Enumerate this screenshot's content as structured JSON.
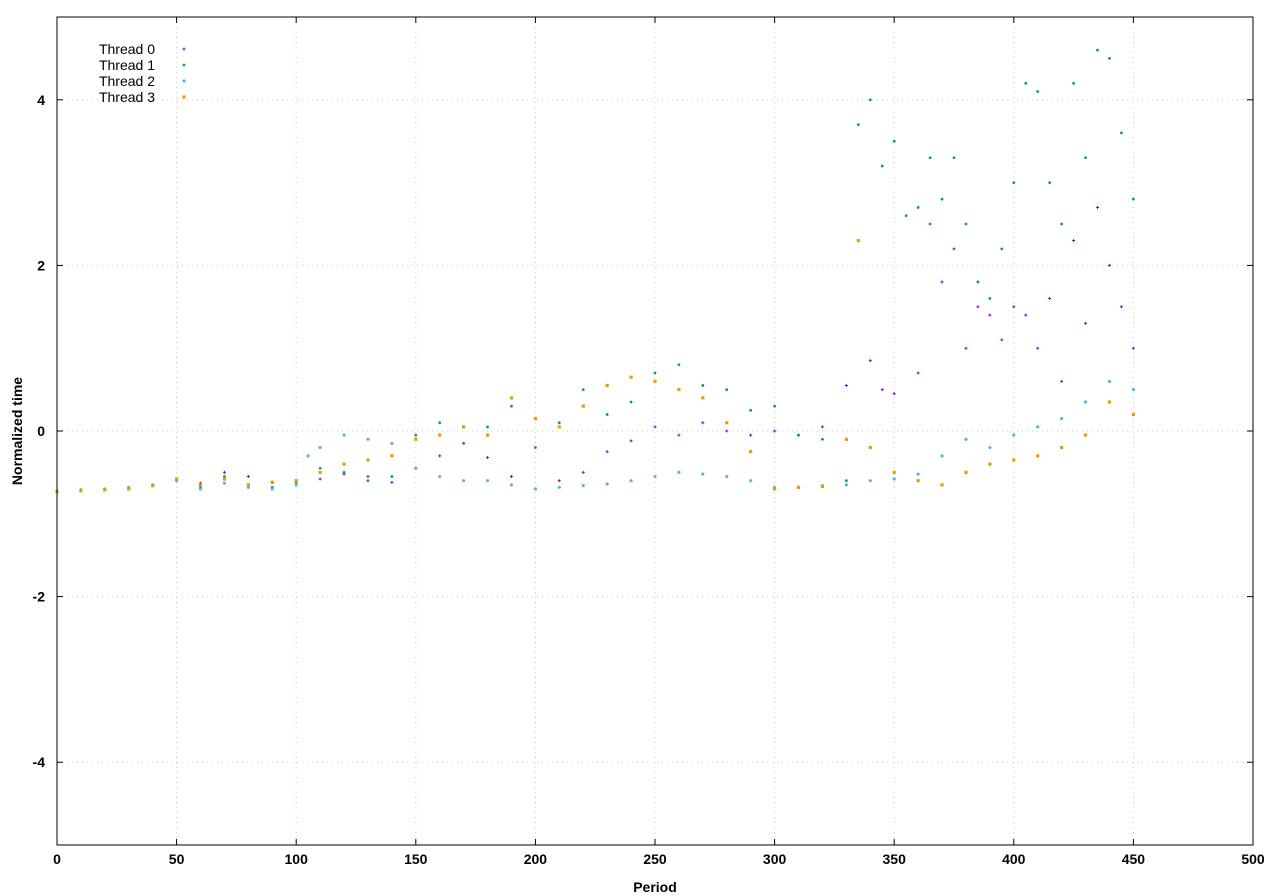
{
  "chart_data": {
    "type": "scatter",
    "title": "",
    "xlabel": "Period",
    "ylabel": "Normalized time",
    "xlim": [
      0,
      500
    ],
    "ylim": [
      -5,
      5
    ],
    "xticks": [
      0,
      50,
      100,
      150,
      200,
      250,
      300,
      350,
      400,
      450,
      500
    ],
    "yticks": [
      -4,
      -2,
      0,
      2,
      4
    ],
    "grid": true,
    "legend_position": "top-left",
    "series": [
      {
        "name": "Thread 0",
        "color": "#9400d3",
        "marker": "plus",
        "points": [
          [
            0,
            -0.73
          ],
          [
            10,
            -0.72
          ],
          [
            20,
            -0.71
          ],
          [
            30,
            -0.69
          ],
          [
            40,
            -0.66
          ],
          [
            50,
            -0.6
          ],
          [
            60,
            -0.63
          ],
          [
            70,
            -0.5
          ],
          [
            80,
            -0.55
          ],
          [
            90,
            -0.62
          ],
          [
            100,
            -0.6
          ],
          [
            110,
            -0.58
          ],
          [
            120,
            -0.52
          ],
          [
            130,
            -0.55
          ],
          [
            140,
            -0.62
          ],
          [
            150,
            -0.45
          ],
          [
            160,
            -0.3
          ],
          [
            170,
            -0.15
          ],
          [
            180,
            -0.32
          ],
          [
            190,
            -0.55
          ],
          [
            200,
            -0.7
          ],
          [
            210,
            -0.6
          ],
          [
            220,
            -0.5
          ],
          [
            230,
            -0.25
          ],
          [
            240,
            -0.12
          ],
          [
            250,
            0.05
          ],
          [
            260,
            -0.05
          ],
          [
            270,
            0.1
          ],
          [
            280,
            0.0
          ],
          [
            290,
            -0.05
          ],
          [
            300,
            0.0
          ],
          [
            310,
            -0.05
          ],
          [
            320,
            0.05
          ],
          [
            330,
            0.55
          ],
          [
            340,
            0.85
          ],
          [
            345,
            0.5
          ],
          [
            350,
            0.45
          ],
          [
            360,
            0.7
          ],
          [
            365,
            2.5
          ],
          [
            370,
            1.8
          ],
          [
            375,
            2.2
          ],
          [
            380,
            1.0
          ],
          [
            385,
            1.5
          ],
          [
            390,
            1.4
          ],
          [
            395,
            1.1
          ],
          [
            400,
            1.5
          ],
          [
            405,
            1.4
          ],
          [
            410,
            1.0
          ],
          [
            415,
            1.6
          ],
          [
            420,
            0.6
          ],
          [
            425,
            2.3
          ],
          [
            430,
            1.3
          ],
          [
            435,
            2.7
          ],
          [
            440,
            2.0
          ],
          [
            445,
            1.5
          ],
          [
            450,
            1.0
          ]
        ]
      },
      {
        "name": "Thread 1",
        "color": "#009e73",
        "marker": "x",
        "points": [
          [
            0,
            -0.73
          ],
          [
            10,
            -0.71
          ],
          [
            20,
            -0.71
          ],
          [
            30,
            -0.7
          ],
          [
            40,
            -0.66
          ],
          [
            50,
            -0.58
          ],
          [
            60,
            -0.68
          ],
          [
            70,
            -0.55
          ],
          [
            80,
            -0.65
          ],
          [
            90,
            -0.68
          ],
          [
            100,
            -0.62
          ],
          [
            105,
            -0.3
          ],
          [
            110,
            -0.45
          ],
          [
            120,
            -0.5
          ],
          [
            130,
            -0.6
          ],
          [
            140,
            -0.55
          ],
          [
            150,
            -0.05
          ],
          [
            160,
            0.1
          ],
          [
            170,
            -0.15
          ],
          [
            180,
            0.05
          ],
          [
            190,
            0.3
          ],
          [
            200,
            -0.2
          ],
          [
            210,
            0.1
          ],
          [
            220,
            0.5
          ],
          [
            230,
            0.2
          ],
          [
            240,
            0.35
          ],
          [
            250,
            0.7
          ],
          [
            260,
            0.8
          ],
          [
            270,
            0.55
          ],
          [
            280,
            0.5
          ],
          [
            290,
            0.25
          ],
          [
            300,
            0.3
          ],
          [
            310,
            -0.05
          ],
          [
            320,
            -0.1
          ],
          [
            330,
            -0.6
          ],
          [
            335,
            3.7
          ],
          [
            340,
            4.0
          ],
          [
            345,
            3.2
          ],
          [
            350,
            3.5
          ],
          [
            355,
            2.6
          ],
          [
            360,
            2.7
          ],
          [
            365,
            3.3
          ],
          [
            370,
            2.8
          ],
          [
            375,
            3.3
          ],
          [
            380,
            2.5
          ],
          [
            385,
            1.8
          ],
          [
            390,
            1.6
          ],
          [
            395,
            2.2
          ],
          [
            400,
            3.0
          ],
          [
            405,
            4.2
          ],
          [
            410,
            4.1
          ],
          [
            415,
            3.0
          ],
          [
            420,
            2.5
          ],
          [
            425,
            4.2
          ],
          [
            430,
            3.3
          ],
          [
            435,
            4.6
          ],
          [
            440,
            4.5
          ],
          [
            445,
            3.6
          ],
          [
            450,
            2.8
          ]
        ]
      },
      {
        "name": "Thread 2",
        "color": "#56b4e9",
        "marker": "star",
        "points": [
          [
            0,
            -0.73
          ],
          [
            10,
            -0.72
          ],
          [
            20,
            -0.7
          ],
          [
            30,
            -0.68
          ],
          [
            40,
            -0.65
          ],
          [
            50,
            -0.6
          ],
          [
            60,
            -0.7
          ],
          [
            70,
            -0.63
          ],
          [
            80,
            -0.68
          ],
          [
            90,
            -0.7
          ],
          [
            100,
            -0.65
          ],
          [
            105,
            -0.3
          ],
          [
            110,
            -0.2
          ],
          [
            120,
            -0.05
          ],
          [
            130,
            -0.1
          ],
          [
            140,
            -0.15
          ],
          [
            150,
            -0.45
          ],
          [
            160,
            -0.55
          ],
          [
            170,
            -0.6
          ],
          [
            180,
            -0.6
          ],
          [
            190,
            -0.65
          ],
          [
            200,
            -0.7
          ],
          [
            210,
            -0.68
          ],
          [
            220,
            -0.66
          ],
          [
            230,
            -0.64
          ],
          [
            240,
            -0.6
          ],
          [
            250,
            -0.55
          ],
          [
            260,
            -0.5
          ],
          [
            270,
            -0.52
          ],
          [
            280,
            -0.55
          ],
          [
            290,
            -0.6
          ],
          [
            300,
            -0.68
          ],
          [
            310,
            -0.68
          ],
          [
            320,
            -0.66
          ],
          [
            330,
            -0.65
          ],
          [
            340,
            -0.6
          ],
          [
            350,
            -0.58
          ],
          [
            360,
            -0.52
          ],
          [
            370,
            -0.3
          ],
          [
            380,
            -0.1
          ],
          [
            390,
            -0.2
          ],
          [
            400,
            -0.05
          ],
          [
            410,
            0.05
          ],
          [
            420,
            0.15
          ],
          [
            430,
            0.35
          ],
          [
            440,
            0.6
          ],
          [
            450,
            0.5
          ]
        ]
      },
      {
        "name": "Thread 3",
        "color": "#e69f00",
        "marker": "square",
        "points": [
          [
            0,
            -0.73
          ],
          [
            10,
            -0.72
          ],
          [
            20,
            -0.71
          ],
          [
            30,
            -0.7
          ],
          [
            40,
            -0.66
          ],
          [
            50,
            -0.58
          ],
          [
            60,
            -0.65
          ],
          [
            70,
            -0.58
          ],
          [
            80,
            -0.65
          ],
          [
            90,
            -0.62
          ],
          [
            100,
            -0.6
          ],
          [
            110,
            -0.5
          ],
          [
            120,
            -0.4
          ],
          [
            130,
            -0.35
          ],
          [
            140,
            -0.3
          ],
          [
            150,
            -0.1
          ],
          [
            160,
            -0.05
          ],
          [
            170,
            0.05
          ],
          [
            180,
            -0.05
          ],
          [
            190,
            0.4
          ],
          [
            200,
            0.15
          ],
          [
            210,
            0.05
          ],
          [
            220,
            0.3
          ],
          [
            230,
            0.55
          ],
          [
            240,
            0.65
          ],
          [
            250,
            0.6
          ],
          [
            260,
            0.5
          ],
          [
            270,
            0.4
          ],
          [
            280,
            0.1
          ],
          [
            290,
            -0.25
          ],
          [
            300,
            -0.7
          ],
          [
            310,
            -0.68
          ],
          [
            320,
            -0.67
          ],
          [
            330,
            -0.1
          ],
          [
            335,
            2.3
          ],
          [
            340,
            -0.2
          ],
          [
            350,
            -0.5
          ],
          [
            360,
            -0.6
          ],
          [
            370,
            -0.65
          ],
          [
            380,
            -0.5
          ],
          [
            390,
            -0.4
          ],
          [
            400,
            -0.35
          ],
          [
            410,
            -0.3
          ],
          [
            420,
            -0.2
          ],
          [
            430,
            -0.05
          ],
          [
            440,
            0.35
          ],
          [
            450,
            0.2
          ]
        ]
      }
    ]
  }
}
